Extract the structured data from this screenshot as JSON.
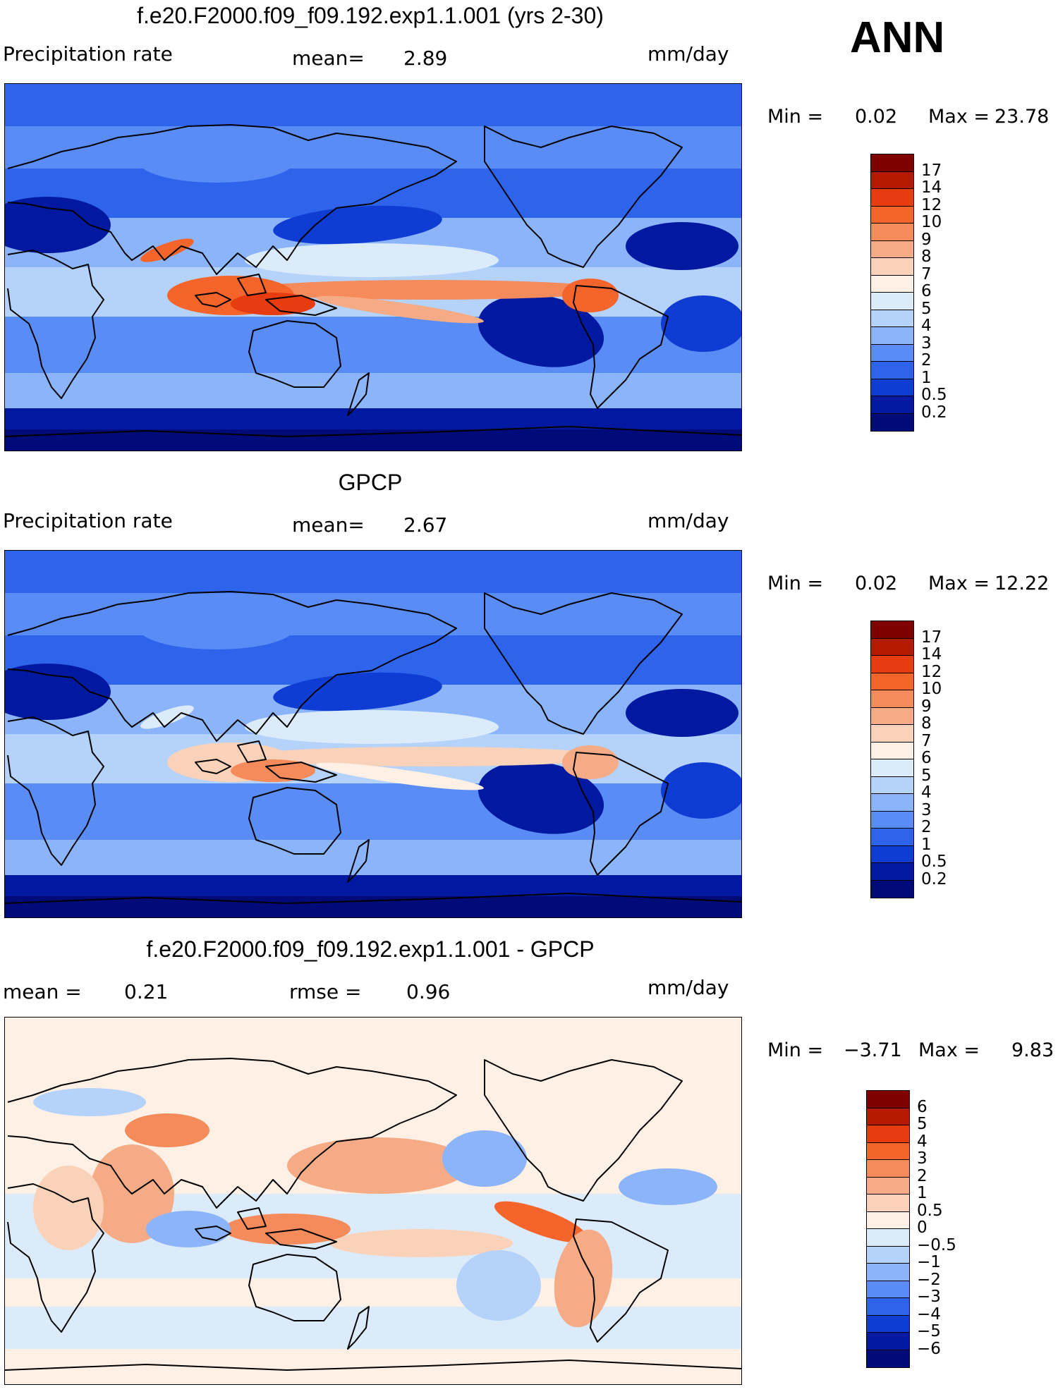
{
  "season": "ANN",
  "panels": [
    {
      "title": "f.e20.F2000.f09_f09.192.exp1.1.001 (yrs 2-30)",
      "left_label": "Precipitation rate",
      "stat1_label": "mean=",
      "stat1_value": "2.89",
      "units": "mm/day",
      "min_label": "Min =",
      "min_value": "0.02",
      "max_label": "Max =",
      "max_value": "23.78",
      "colorbar": {
        "levels": [
          "17",
          "14",
          "12",
          "10",
          "9",
          "8",
          "7",
          "6",
          "5",
          "4",
          "3",
          "2",
          "1",
          "0.5",
          "0.2"
        ],
        "colors": [
          "#800000",
          "#b31a00",
          "#e63c0f",
          "#f5642a",
          "#f58a5a",
          "#f5ab85",
          "#fad2b9",
          "#fff0e6",
          "#dcebfa",
          "#b4d2fa",
          "#8cb4fa",
          "#5a8cf5",
          "#2d64eb",
          "#0f3cd2",
          "#0019a0",
          "#000a78"
        ]
      }
    },
    {
      "title": "GPCP",
      "left_label": "Precipitation rate",
      "stat1_label": "mean=",
      "stat1_value": "2.67",
      "units": "mm/day",
      "min_label": "Min =",
      "min_value": "0.02",
      "max_label": "Max =",
      "max_value": "12.22",
      "colorbar": {
        "levels": [
          "17",
          "14",
          "12",
          "10",
          "9",
          "8",
          "7",
          "6",
          "5",
          "4",
          "3",
          "2",
          "1",
          "0.5",
          "0.2"
        ],
        "colors": [
          "#800000",
          "#b31a00",
          "#e63c0f",
          "#f5642a",
          "#f58a5a",
          "#f5ab85",
          "#fad2b9",
          "#fff0e6",
          "#dcebfa",
          "#b4d2fa",
          "#8cb4fa",
          "#5a8cf5",
          "#2d64eb",
          "#0f3cd2",
          "#0019a0",
          "#000a78"
        ]
      }
    },
    {
      "title": "f.e20.F2000.f09_f09.192.exp1.1.001 - GPCP",
      "left_label": "mean =",
      "left_value": "0.21",
      "stat1_label": "rmse =",
      "stat1_value": "0.96",
      "units": "mm/day",
      "min_label": "Min =",
      "min_value": "−3.71",
      "max_label": "Max =",
      "max_value": "9.83",
      "colorbar": {
        "levels": [
          "6",
          "5",
          "4",
          "3",
          "2",
          "1",
          "0.5",
          "0",
          "−0.5",
          "−1",
          "−2",
          "−3",
          "−4",
          "−5",
          "−6"
        ],
        "colors": [
          "#800000",
          "#b31a00",
          "#e63c0f",
          "#f5642a",
          "#f58a5a",
          "#f5ab85",
          "#fad2b9",
          "#fff0e6",
          "#dcebfa",
          "#b4d2fa",
          "#8cb4fa",
          "#5a8cf5",
          "#2d64eb",
          "#0f3cd2",
          "#0019a0",
          "#000a78"
        ]
      }
    }
  ]
}
